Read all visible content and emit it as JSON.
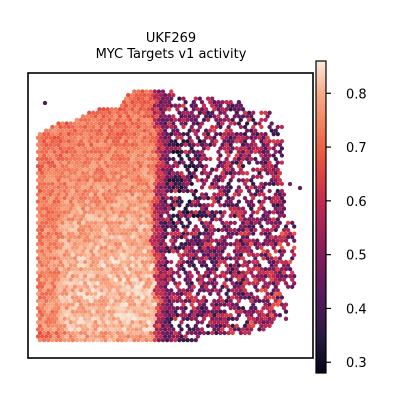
{
  "chart_data": {
    "type": "scatter",
    "subtype": "spatial-hexbin",
    "title_line1": "UKF269",
    "title_line2": "MYC Targets v1 activity",
    "xlabel": "",
    "ylabel": "",
    "colormap": "rocket",
    "colorbar": {
      "vmin": 0.28,
      "vmax": 0.86,
      "ticks": [
        0.3,
        0.4,
        0.5,
        0.6,
        0.7,
        0.8
      ],
      "tick_labels": [
        "0.3",
        "0.4",
        "0.5",
        "0.6",
        "0.7",
        "0.8"
      ]
    },
    "axes_frame": true,
    "grid": false,
    "regions": {
      "left_tissue_activity": "0.70-0.84 (high)",
      "right_tissue_activity": "0.30-0.60 (low to mid)",
      "boundary_description": "sharp vertical transition near the middle of the spot area"
    }
  }
}
